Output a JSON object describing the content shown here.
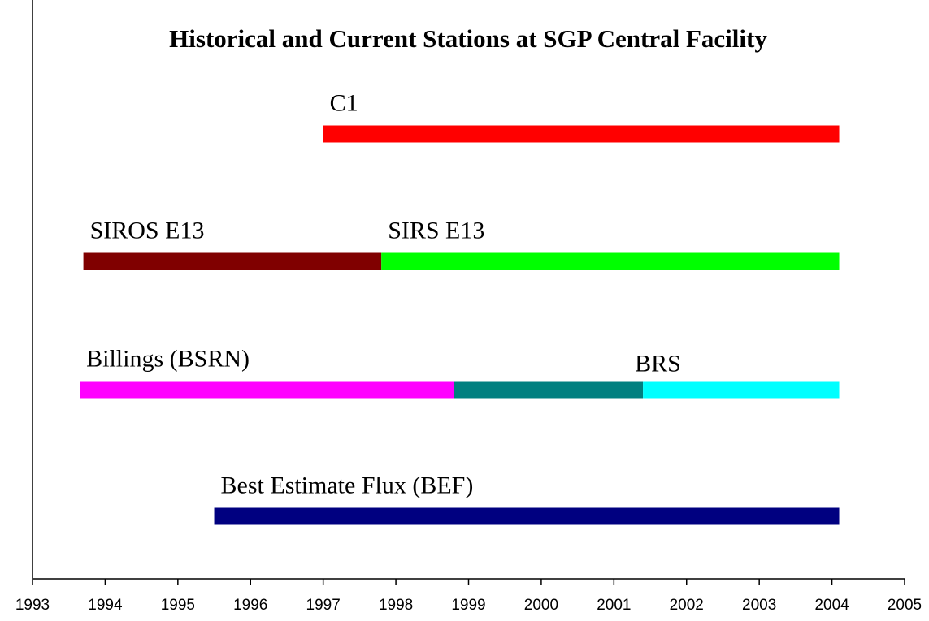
{
  "chart_data": {
    "type": "timeline",
    "title": "Historical and Current Stations at SGP Central Facility",
    "xlim": [
      1993,
      2005
    ],
    "xticks": [
      1993,
      1994,
      1995,
      1996,
      1997,
      1998,
      1999,
      2000,
      2001,
      2002,
      2003,
      2004,
      2005
    ],
    "rows": [
      {
        "segments": [
          {
            "name": "C1",
            "color": "#ff0000",
            "start": 1997.0,
            "end": 2004.1
          }
        ]
      },
      {
        "segments": [
          {
            "name": "SIROS E13",
            "color": "#800000",
            "start": 1993.7,
            "end": 1997.8
          },
          {
            "name": "SIRS E13",
            "color": "#00ff00",
            "start": 1997.8,
            "end": 2004.1
          }
        ]
      },
      {
        "segments": [
          {
            "name": "Billings (BSRN)",
            "color": "#ff00ff",
            "start": 1993.65,
            "end": 1998.8
          },
          {
            "color": "#008080",
            "start": 1998.8,
            "end": 2001.4
          },
          {
            "name": "BRS",
            "color": "#00ffff",
            "start": 2001.4,
            "end": 2004.1
          }
        ]
      },
      {
        "segments": [
          {
            "name": "Best Estimate Flux (BEF)",
            "color": "#000080",
            "start": 1995.5,
            "end": 2004.1
          }
        ]
      }
    ]
  }
}
